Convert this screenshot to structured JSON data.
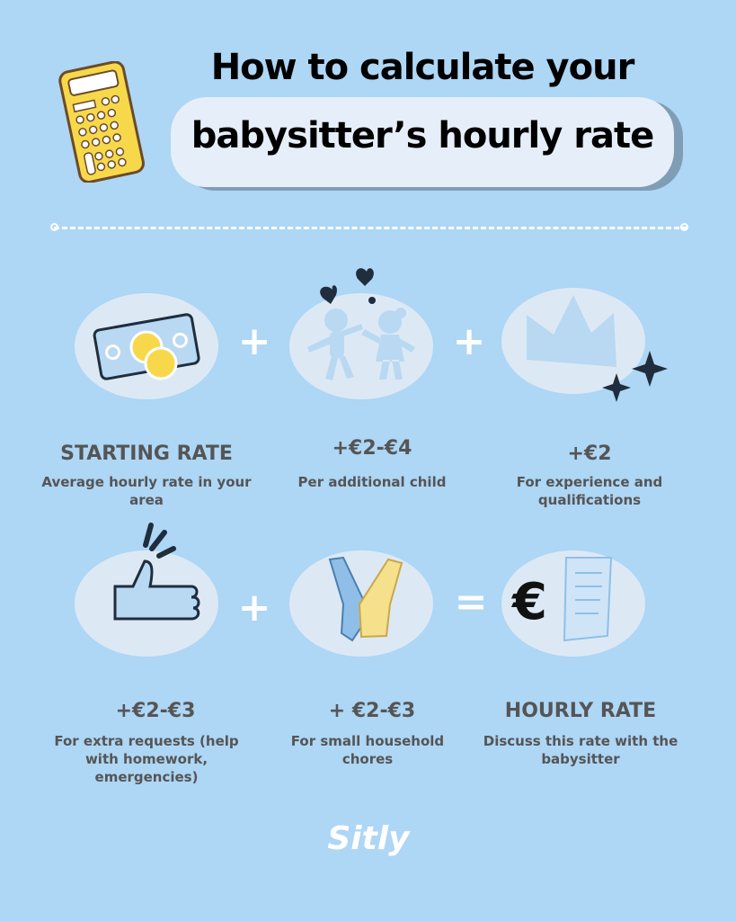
{
  "title": {
    "line1": "How to calculate your",
    "line2": "babysitter’s hourly rate"
  },
  "steps": [
    {
      "heading": "STARTING RATE",
      "description": "Average hourly rate in your area",
      "icon": "money-icon"
    },
    {
      "heading": "+€2-€4",
      "description": "Per additional child",
      "icon": "children-icon"
    },
    {
      "heading": "+€2",
      "description": "For experience and qualifications",
      "icon": "crown-icon"
    },
    {
      "heading": "+€2-€3",
      "description": "For extra requests (help with homework, emergencies)",
      "icon": "thumbs-up-icon"
    },
    {
      "heading": "+ €2-€3",
      "description": "For small household chores",
      "icon": "gloves-icon"
    },
    {
      "heading": "HOURLY RATE",
      "description": "Discuss this rate with the babysitter",
      "icon": "euro-receipt-icon"
    }
  ],
  "operators": {
    "plus": "+",
    "equals": "="
  },
  "logo": "Sitly",
  "colors": {
    "background": "#aed6f5",
    "oval": "#dce9f5",
    "text": "#555555",
    "calculator": "#f7d84a"
  }
}
